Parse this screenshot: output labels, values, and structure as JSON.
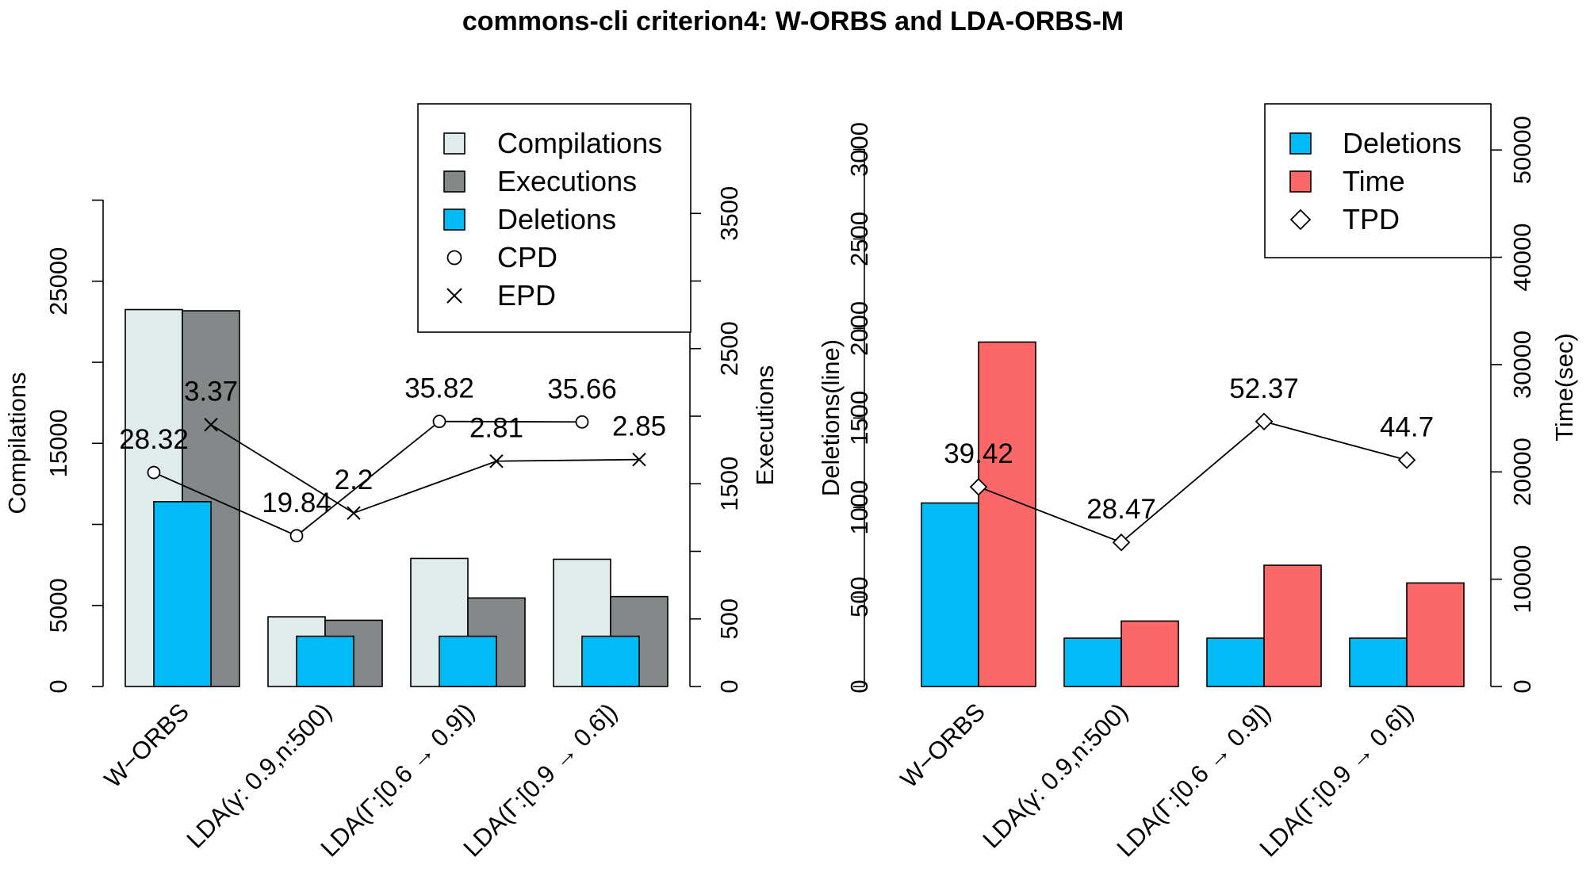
{
  "title": "commons-cli criterion4: W-ORBS and LDA-ORBS-M",
  "chart_data": [
    {
      "type": "bar",
      "panel": "left",
      "categories": [
        "W−ORBS",
        "LDA(γ: 0.9,n:500)",
        "LDA(Γ:[0.6 → 0.9])",
        "LDA(Γ:[0.9 → 0.6])"
      ],
      "series": [
        {
          "name": "Compilations",
          "axis": "left",
          "color": "#e0ecec",
          "values": [
            23250,
            4300,
            7900,
            7850
          ]
        },
        {
          "name": "Executions",
          "axis": "right",
          "color": "#848888",
          "values": [
            2780,
            490,
            655,
            665
          ]
        },
        {
          "name": "Deletions",
          "axis": "left",
          "color": "#00bbf5",
          "values": [
            11400,
            3100,
            3100,
            3100
          ]
        }
      ],
      "lines": [
        {
          "name": "CPD",
          "marker": "circle",
          "axis": "left",
          "values": [
            28.32,
            19.84,
            35.82,
            35.66
          ],
          "y_positions": [
            13200,
            9300,
            16350,
            16320
          ]
        },
        {
          "name": "EPD",
          "marker": "cross",
          "axis": "left",
          "values": [
            3.37,
            2.2,
            2.81,
            2.85
          ],
          "y_positions": [
            16150,
            10700,
            13900,
            14000
          ]
        }
      ],
      "ylabel": "Compilations",
      "ylim": [
        0,
        30000
      ],
      "yticks": [
        0,
        5000,
        15000,
        25000
      ],
      "y2label": "Executions",
      "y2lim": [
        0,
        3600
      ],
      "y2ticks": [
        0,
        500,
        1500,
        2500,
        3500
      ],
      "legend": {
        "position": "top-right",
        "entries": [
          {
            "label": "Compilations",
            "kind": "box",
            "color": "#e0ecec"
          },
          {
            "label": "Executions",
            "kind": "box",
            "color": "#848888"
          },
          {
            "label": "Deletions",
            "kind": "box",
            "color": "#00bbf5"
          },
          {
            "label": "CPD",
            "kind": "circle"
          },
          {
            "label": "EPD",
            "kind": "cross"
          }
        ]
      }
    },
    {
      "type": "bar",
      "panel": "right",
      "categories": [
        "W−ORBS",
        "LDA(γ: 0.9,n:500)",
        "LDA(Γ:[0.6 → 0.9])",
        "LDA(Γ:[0.9 → 0.6])"
      ],
      "series": [
        {
          "name": "Deletions",
          "axis": "left",
          "color": "#00bbf5",
          "values": [
            1025,
            270,
            270,
            270
          ]
        },
        {
          "name": "Time",
          "axis": "right",
          "color": "#fc6767",
          "values": [
            32100,
            6100,
            11300,
            9650
          ]
        }
      ],
      "lines": [
        {
          "name": "TPD",
          "marker": "diamond",
          "axis": "left",
          "values": [
            39.42,
            28.47,
            52.37,
            44.7
          ],
          "y_positions": [
            1115,
            805,
            1480,
            1265
          ]
        }
      ],
      "ylabel": "Deletions(line)",
      "ylim": [
        0,
        3000
      ],
      "yticks": [
        0,
        500,
        1000,
        1500,
        2000,
        2500,
        3000
      ],
      "y2label": "Time(sec)",
      "y2lim": [
        0,
        50000
      ],
      "y2ticks": [
        0,
        10000,
        20000,
        30000,
        40000,
        50000
      ],
      "legend": {
        "position": "top-right",
        "entries": [
          {
            "label": "Deletions",
            "kind": "box",
            "color": "#00bbf5"
          },
          {
            "label": "Time",
            "kind": "box",
            "color": "#fc6767"
          },
          {
            "label": "TPD",
            "kind": "diamond"
          }
        ]
      }
    }
  ]
}
